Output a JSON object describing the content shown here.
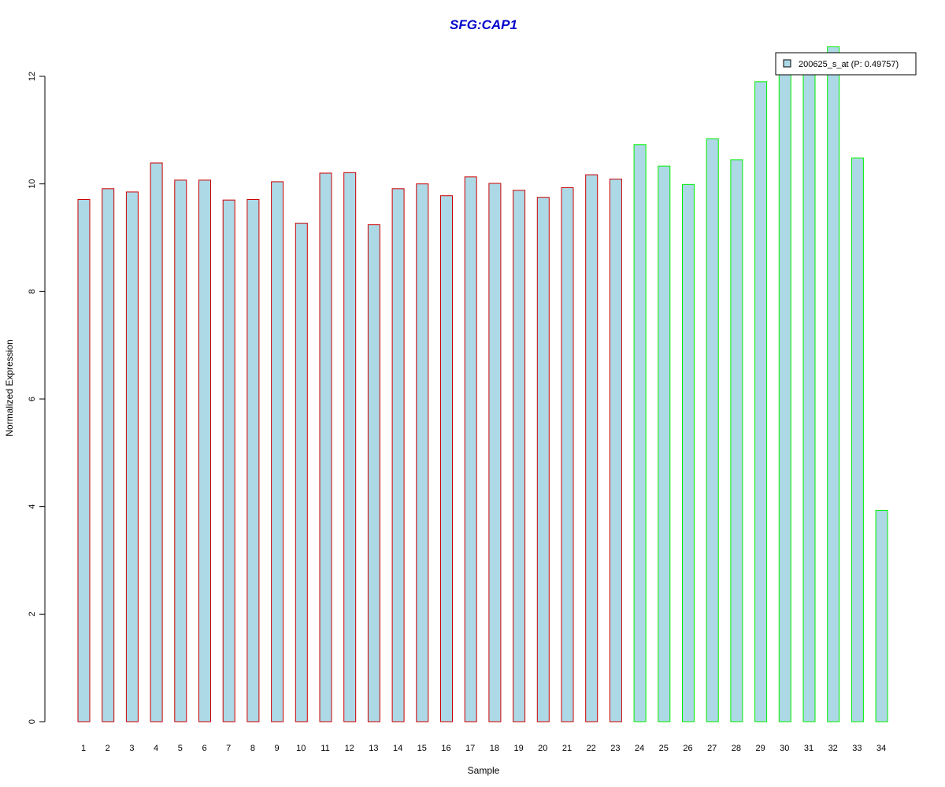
{
  "chart_data": {
    "type": "bar",
    "title": "SFG:CAP1",
    "xlabel": "Sample",
    "ylabel": "Normalized Expression",
    "ylim": [
      0,
      12
    ],
    "yticks": [
      0,
      2,
      4,
      6,
      8,
      10,
      12
    ],
    "grid": false,
    "legend_position": "top-right",
    "categories": [
      "1",
      "2",
      "3",
      "4",
      "5",
      "6",
      "7",
      "8",
      "9",
      "10",
      "11",
      "12",
      "13",
      "14",
      "15",
      "16",
      "17",
      "18",
      "19",
      "20",
      "21",
      "22",
      "23",
      "24",
      "25",
      "26",
      "27",
      "28",
      "29",
      "30",
      "31",
      "32",
      "33",
      "34"
    ],
    "series": [
      {
        "name": "200625_s_at (P: 0.49757)",
        "values": [
          9.71,
          9.91,
          9.85,
          10.39,
          10.07,
          10.07,
          9.7,
          9.71,
          10.04,
          9.27,
          10.2,
          10.21,
          9.24,
          9.91,
          10.0,
          9.78,
          10.13,
          10.01,
          9.88,
          9.75,
          9.93,
          10.17,
          10.09,
          10.73,
          10.33,
          9.99,
          10.84,
          10.45,
          11.9,
          12.35,
          12.1,
          12.55,
          10.48,
          3.93
        ]
      }
    ],
    "bar_groups": [
      {
        "from": 1,
        "to": 23,
        "border_color": "#cc0000"
      },
      {
        "from": 24,
        "to": 34,
        "border_color": "#00ee00"
      }
    ],
    "colors": {
      "bar_fill": "#add8e6",
      "title": "#0000cc",
      "axis": "#000000"
    }
  }
}
